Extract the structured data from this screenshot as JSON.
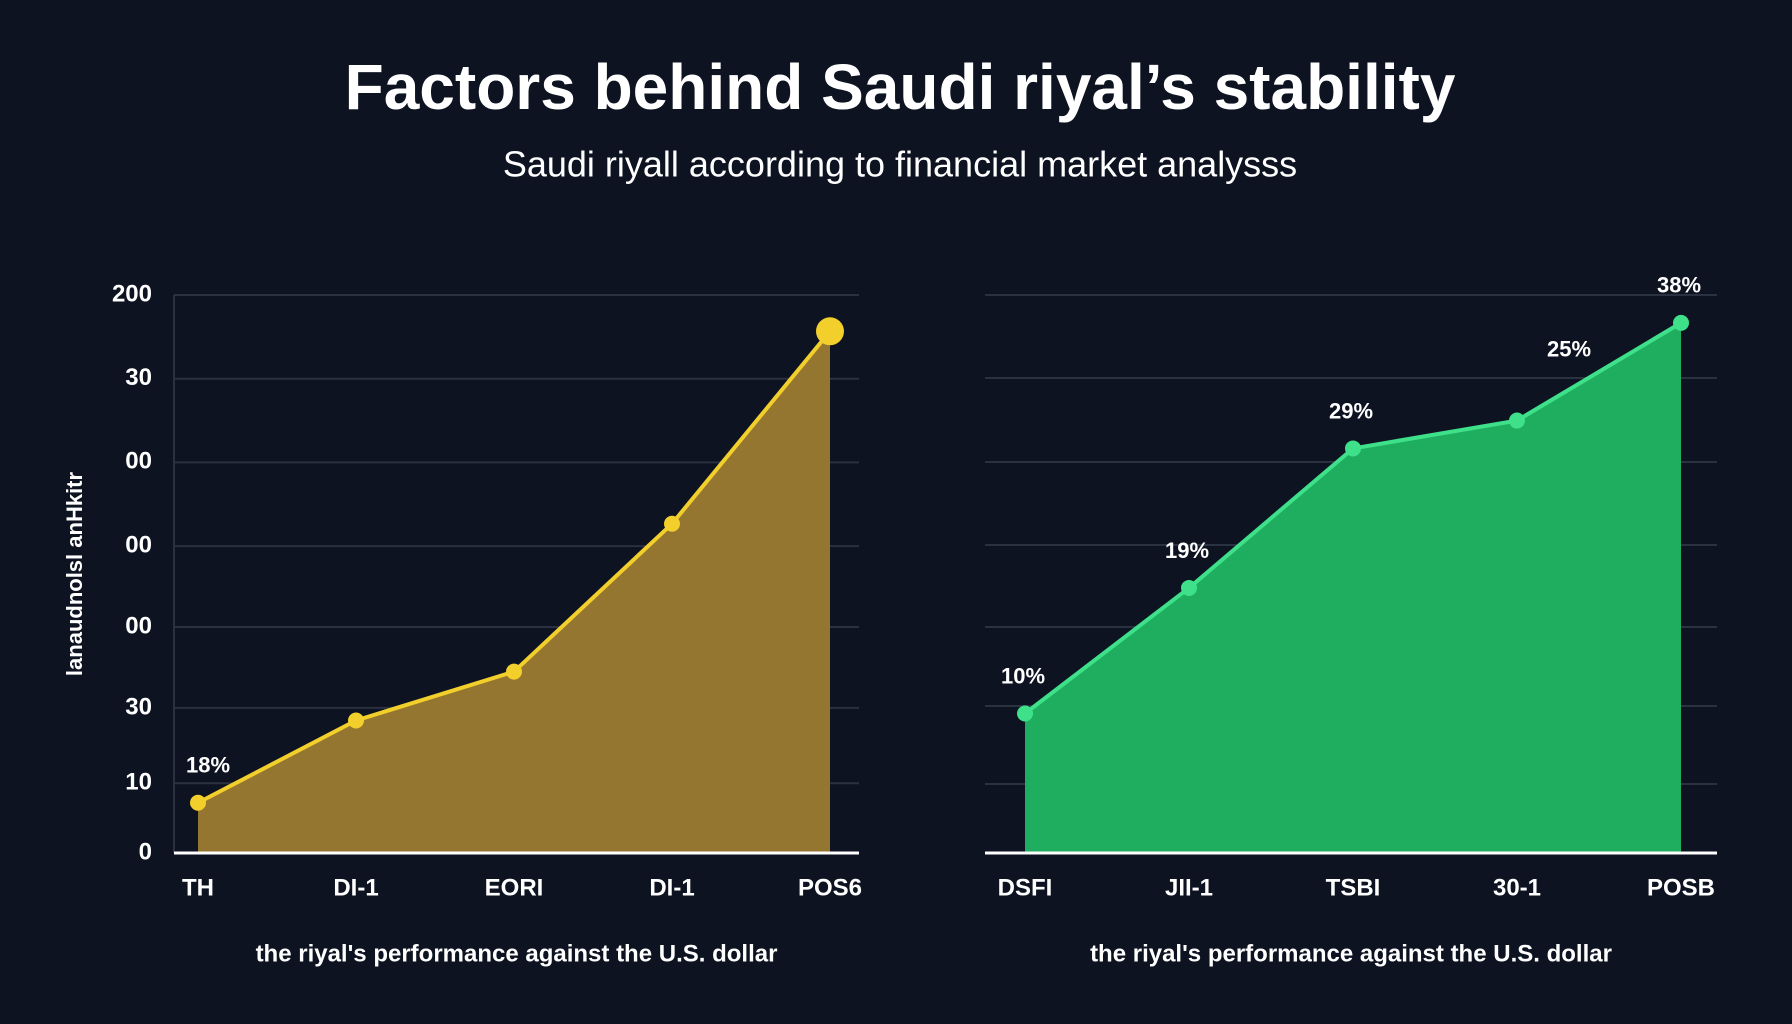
{
  "title": "Factors behind Saudi riyal’s stability",
  "subtitle": "Saudi riyall according to financial market analysss",
  "chart_data": [
    {
      "type": "area",
      "ylabel": "lanaudnolsl anHkitr",
      "xlabel": "the riyal's performance against the U.S. dollar",
      "categories": [
        "TH",
        "DI-1",
        "EORI",
        "DI-1",
        "POS6"
      ],
      "values": [
        18,
        47.5,
        65,
        118,
        187
      ],
      "value_labels": [
        "18%",
        null,
        null,
        null,
        null
      ],
      "line_color": "#f2cf2a",
      "fill_color": "#957631",
      "ylim": [
        0,
        200
      ],
      "yticks": [
        0,
        {
          "value": 25,
          "label": "10"
        },
        {
          "value": 52,
          "label": "30"
        },
        {
          "value": 81,
          "label": "00"
        },
        {
          "value": 110,
          "label": "00"
        },
        {
          "value": 140,
          "label": "00"
        },
        {
          "value": 170,
          "label": "30"
        },
        200
      ],
      "grid": true
    },
    {
      "type": "area",
      "xlabel": "the riyal's performance against the U.S. dollar",
      "categories": [
        "DSFI",
        "JII-1",
        "TSBI",
        "30-1",
        "POSB"
      ],
      "values": [
        10,
        19,
        29,
        31,
        38
      ],
      "value_labels": [
        "10%",
        "19%",
        "29%",
        null,
        "38%"
      ],
      "annotations": [
        {
          "text": "25%"
        }
      ],
      "line_color": "#3ee08a",
      "fill_color": "#1fae5f",
      "ylim": [
        0,
        40
      ]
    }
  ]
}
